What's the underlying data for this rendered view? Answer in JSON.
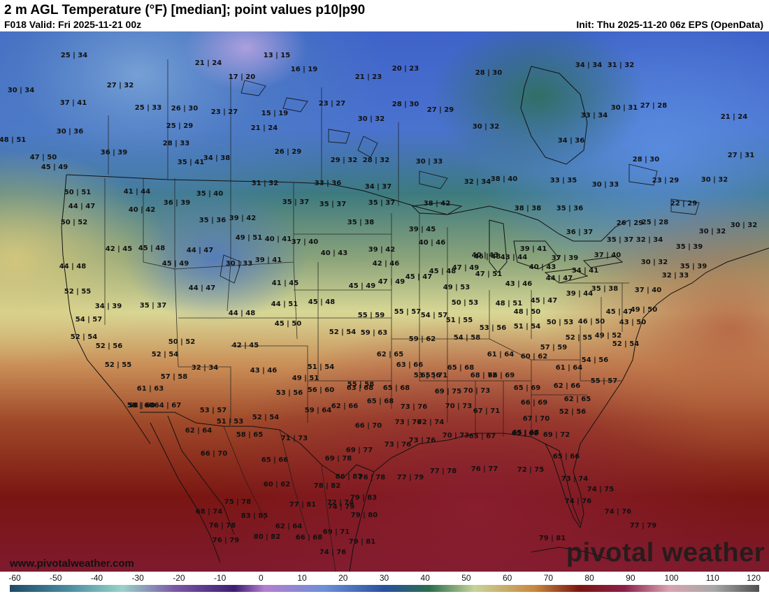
{
  "header": {
    "title": "2 m AGL Temperature (°F) [median]; point values p10|p90",
    "valid": "F018 Valid: Fri 2025-11-21 00z",
    "init": "Init: Thu 2025-11-20 06z EPS (OpenData)"
  },
  "footer": {
    "site": "www.pivotalweather.com",
    "brand": "pivotal weather"
  },
  "colorbar": {
    "ticks": [
      "-60",
      "-50",
      "-40",
      "-30",
      "-20",
      "-10",
      "0",
      "10",
      "20",
      "30",
      "40",
      "50",
      "60",
      "70",
      "80",
      "90",
      "100",
      "110",
      "120"
    ]
  },
  "point_values": [
    "25|34",
    "13|15",
    "21|24",
    "16|19",
    "21|23",
    "20|23",
    "28|30",
    "34|34",
    "31|32",
    "30|34",
    "27|32",
    "17|20",
    "37|41",
    "25|33",
    "26|30",
    "23|27",
    "15|19",
    "23|27",
    "30|32",
    "28|30",
    "27|29",
    "33|34",
    "30|31",
    "27|28",
    "21|24",
    "30|36",
    "25|29",
    "21|24",
    "30|32",
    "48|51",
    "28|33",
    "34|36",
    "47|50",
    "36|39",
    "26|29",
    "29|32",
    "28|32",
    "30|33",
    "28|30",
    "27|31",
    "45|49",
    "35|41",
    "34|38",
    "32|34",
    "38|40",
    "33|35",
    "30|33",
    "23|29",
    "30|32",
    "50|51",
    "41|44",
    "31|32",
    "33|36",
    "34|37",
    "22|29",
    "44|47",
    "40|42",
    "36|39",
    "35|40",
    "35|37",
    "35|37",
    "35|37",
    "38|42",
    "38|38",
    "35|36",
    "26|29",
    "25|28",
    "30|32",
    "30|32",
    "50|52",
    "35|36",
    "39|42",
    "35|38",
    "39|45",
    "36|37",
    "35|37",
    "49|51",
    "40|41",
    "37|40",
    "40|46",
    "40|43",
    "32|34",
    "35|39",
    "42|45",
    "45|48",
    "44|47",
    "39|41",
    "40|43",
    "39|42",
    "46|48",
    "43|44",
    "39|41",
    "37|39",
    "37|40",
    "44|48",
    "45|49",
    "30|33",
    "42|46",
    "45|47",
    "47|49",
    "40|43",
    "34|41",
    "30|32",
    "35|39",
    "41|45",
    "45|49",
    "47|49",
    "45|48",
    "49|53",
    "47|51",
    "43|46",
    "44|47",
    "32|33",
    "52|55",
    "44|47",
    "35|38",
    "37|40",
    "34|39",
    "35|37",
    "44|51",
    "45|48",
    "50|53",
    "48|51",
    "45|47",
    "39|44",
    "44|48",
    "55|59",
    "55|57",
    "54|57",
    "51|55",
    "48|50",
    "45|47",
    "49|50",
    "54|57",
    "45|50",
    "52|54",
    "59|63",
    "53|56",
    "51|54",
    "50|53",
    "46|50",
    "43|50",
    "52|54",
    "50|52",
    "54|58",
    "59|62",
    "52|55",
    "49|52",
    "52|56",
    "42|45",
    "52|54",
    "57|59",
    "52|54",
    "61|64",
    "60|62",
    "62|65",
    "63|66",
    "54|56",
    "52|55",
    "32|34",
    "51|54",
    "65|68",
    "61|64",
    "53|56",
    "57|58",
    "43|46",
    "65|71",
    "68|72",
    "66|69",
    "55|57",
    "49|51",
    "62|66",
    "55|58",
    "61|63",
    "58|60",
    "56|60",
    "63|68",
    "65|68",
    "69|75",
    "70|73",
    "65|69",
    "62|65",
    "58|60",
    "64|67",
    "53|57",
    "62|66",
    "65|68",
    "73|76",
    "70|73",
    "67|71",
    "66|69",
    "53|56",
    "59|64",
    "66|70",
    "62|64",
    "51|53",
    "52|56",
    "73|76",
    "72|74",
    "67|70",
    "65|68",
    "52|54",
    "58|65",
    "71|73",
    "73|76",
    "70|73",
    "65|67",
    "65|68",
    "69|72",
    "66|70",
    "65|66",
    "69|77",
    "69|78",
    "65|66",
    "73|76",
    "76|78",
    "77|79",
    "77|78",
    "76|77",
    "72|75",
    "73|74",
    "60|62",
    "78|82",
    "86|87",
    "72|74",
    "74|75",
    "75|78",
    "77|81",
    "74|79",
    "79|83",
    "74|76",
    "68|74",
    "79|80",
    "76|78",
    "74|76",
    "62|64",
    "83|85",
    "69|71",
    "77|79",
    "76|79",
    "80|82",
    "66|68",
    "79|81",
    "79|81",
    "74|76"
  ]
}
